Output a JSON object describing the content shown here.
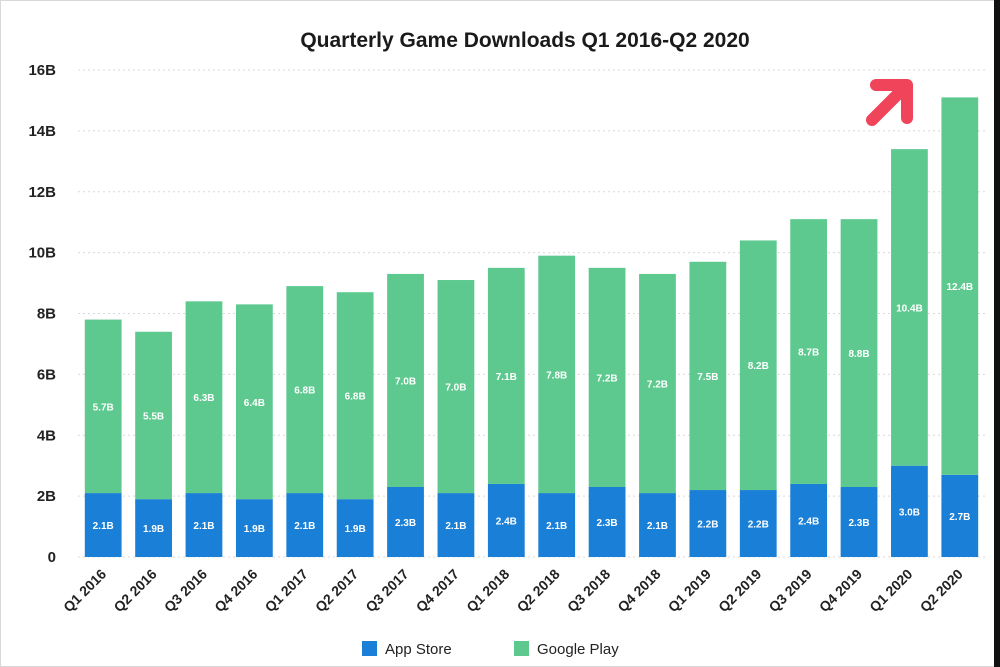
{
  "chart_data": {
    "type": "bar",
    "stacked": true,
    "title": "Quarterly Game Downloads Q1 2016-Q2 2020",
    "xlabel": "",
    "ylabel": "",
    "ylim": [
      0,
      16
    ],
    "y_ticks": [
      "0",
      "2B",
      "4B",
      "6B",
      "8B",
      "10B",
      "12B",
      "14B",
      "16B"
    ],
    "grid": true,
    "legend_position": "bottom",
    "categories": [
      "Q1 2016",
      "Q2 2016",
      "Q3 2016",
      "Q4 2016",
      "Q1 2017",
      "Q2 2017",
      "Q3 2017",
      "Q4 2017",
      "Q1 2018",
      "Q2 2018",
      "Q3 2018",
      "Q4 2018",
      "Q1 2019",
      "Q2 2019",
      "Q3 2019",
      "Q4 2019",
      "Q1 2020",
      "Q2 2020"
    ],
    "series": [
      {
        "name": "App Store",
        "color": "#1a7fd6",
        "values": [
          2.1,
          1.9,
          2.1,
          1.9,
          2.1,
          1.9,
          2.3,
          2.1,
          2.4,
          2.1,
          2.3,
          2.1,
          2.2,
          2.2,
          2.4,
          2.3,
          3.0,
          2.7
        ],
        "labels": [
          "2.1B",
          "1.9B",
          "2.1B",
          "1.9B",
          "2.1B",
          "1.9B",
          "2.3B",
          "2.1B",
          "2.4B",
          "2.1B",
          "2.3B",
          "2.1B",
          "2.2B",
          "2.2B",
          "2.4B",
          "2.3B",
          "3.0B",
          "2.7B"
        ]
      },
      {
        "name": "Google Play",
        "color": "#5ec98f",
        "values": [
          5.7,
          5.5,
          6.3,
          6.4,
          6.8,
          6.8,
          7.0,
          7.0,
          7.1,
          7.8,
          7.2,
          7.2,
          7.5,
          8.2,
          8.7,
          8.8,
          10.4,
          12.4
        ],
        "labels": [
          "5.7B",
          "5.5B",
          "6.3B",
          "6.4B",
          "6.8B",
          "6.8B",
          "7.0B",
          "7.0B",
          "7.1B",
          "7.8B",
          "7.2B",
          "7.2B",
          "7.5B",
          "8.2B",
          "8.7B",
          "8.8B",
          "10.4B",
          "12.4B"
        ]
      }
    ],
    "annotations": [
      {
        "type": "arrow",
        "direction": "up-right",
        "color": "#f0445a"
      }
    ]
  }
}
